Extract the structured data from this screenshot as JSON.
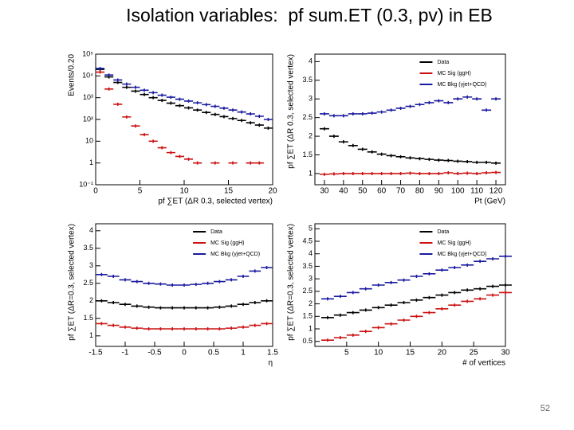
{
  "slide": {
    "title": "Isolation variables:  pf sum.ET (0.3, pv) in EB",
    "page_number": "52"
  },
  "chart_data": [
    {
      "type": "scatter",
      "log_y": true,
      "xlabel": "pf ∑ET (ΔR 0.3, selected vertex)",
      "ylabel": "Events/0.20",
      "x": [
        0.5,
        1.5,
        2.5,
        3.5,
        4.5,
        5.5,
        6.5,
        7.5,
        8.5,
        9.5,
        10.5,
        11.5,
        12.5,
        13.5,
        14.5,
        15.5,
        16.5,
        17.5,
        18.5,
        19.5
      ],
      "xlim": [
        0,
        20
      ],
      "xticks": [
        0,
        5,
        10,
        15,
        20
      ],
      "ylim": [
        0.1,
        100000
      ],
      "yticks": [
        {
          "value": 0.1,
          "label": "10⁻¹"
        },
        1,
        10,
        {
          "value": 100,
          "label": "10²"
        },
        {
          "value": 1000,
          "label": "10³"
        },
        {
          "value": 10000,
          "label": "10⁴"
        },
        {
          "value": 100000,
          "label": "10⁵"
        }
      ],
      "series": [
        {
          "color": "#000000",
          "values": [
            20000,
            9000,
            5000,
            3000,
            2000,
            1400,
            1000,
            750,
            560,
            430,
            340,
            270,
            210,
            170,
            135,
            110,
            90,
            70,
            55,
            40
          ]
        },
        {
          "color": "#1a1aa0",
          "values": [
            22000,
            11000,
            6500,
            4200,
            3000,
            2200,
            1700,
            1300,
            1050,
            850,
            700,
            580,
            480,
            400,
            330,
            270,
            220,
            180,
            140,
            100
          ]
        },
        {
          "color": "#cc1111",
          "values": [
            15000,
            2500,
            500,
            130,
            50,
            20,
            10,
            5,
            3,
            2,
            1.5,
            1,
            null,
            1,
            null,
            1,
            null,
            1,
            1,
            null
          ]
        }
      ]
    },
    {
      "type": "scatter",
      "xlabel": "Pt (GeV)",
      "ylabel": "pf ∑ET (ΔR 0.3, selected vertex)",
      "x": [
        30,
        35,
        40,
        45,
        50,
        55,
        60,
        65,
        70,
        75,
        80,
        85,
        90,
        95,
        100,
        105,
        110,
        115,
        120
      ],
      "xlim": [
        25,
        125
      ],
      "xticks": [
        30,
        40,
        50,
        60,
        70,
        80,
        90,
        100,
        110,
        120
      ],
      "ylim": [
        0.7,
        4.2
      ],
      "yticks": [
        1,
        1.5,
        2,
        2.5,
        3,
        3.5,
        4
      ],
      "series": [
        {
          "name": "Data",
          "color": "#000000",
          "values": [
            2.2,
            2.0,
            1.85,
            1.75,
            1.65,
            1.58,
            1.52,
            1.48,
            1.45,
            1.42,
            1.4,
            1.38,
            1.36,
            1.35,
            1.33,
            1.32,
            1.3,
            1.3,
            1.28
          ]
        },
        {
          "name": "MC Sig (ggH)",
          "color": "#cc1111",
          "values": [
            0.98,
            0.99,
            1,
            1,
            1,
            1,
            1,
            1,
            1,
            1.01,
            1,
            1,
            1,
            1.02,
            1,
            1.01,
            1,
            1.02,
            1.03
          ]
        },
        {
          "name": "MC Bkg (γjet+QCD)",
          "color": "#1a1aa0",
          "values": [
            2.6,
            2.55,
            2.55,
            2.6,
            2.6,
            2.62,
            2.65,
            2.7,
            2.75,
            2.8,
            2.85,
            2.9,
            2.95,
            2.9,
            3.0,
            3.05,
            3.0,
            2.7,
            3.0
          ]
        }
      ]
    },
    {
      "type": "scatter",
      "xlabel": "η",
      "ylabel": "pf ∑ET (ΔR=0.3, selected vertex)",
      "x": [
        -1.4,
        -1.2,
        -1,
        -0.8,
        -0.6,
        -0.4,
        -0.2,
        0,
        0.2,
        0.4,
        0.6,
        0.8,
        1,
        1.2,
        1.4
      ],
      "xlim": [
        -1.5,
        1.5
      ],
      "xticks": [
        -1.5,
        -1,
        -0.5,
        0,
        0.5,
        1,
        1.5
      ],
      "ylim": [
        0.7,
        4.2
      ],
      "yticks": [
        1,
        1.5,
        2,
        2.5,
        3,
        3.5,
        4
      ],
      "series": [
        {
          "name": "Data",
          "color": "#000000",
          "values": [
            2.0,
            1.95,
            1.9,
            1.85,
            1.82,
            1.8,
            1.8,
            1.8,
            1.8,
            1.8,
            1.82,
            1.85,
            1.9,
            1.95,
            2.0
          ]
        },
        {
          "name": "MC Sig (ggH)",
          "color": "#cc1111",
          "values": [
            1.35,
            1.3,
            1.25,
            1.22,
            1.2,
            1.2,
            1.2,
            1.2,
            1.2,
            1.2,
            1.2,
            1.22,
            1.25,
            1.3,
            1.35
          ]
        },
        {
          "name": "MC Bkg (γjet+QCD)",
          "color": "#1a1aa0",
          "values": [
            2.75,
            2.7,
            2.6,
            2.55,
            2.5,
            2.48,
            2.45,
            2.45,
            2.47,
            2.5,
            2.55,
            2.6,
            2.7,
            2.85,
            2.95
          ]
        }
      ]
    },
    {
      "type": "scatter",
      "xlabel": "# of vertices",
      "ylabel": "pf ∑ET (ΔR=0.3, selected vertex)",
      "x": [
        2,
        4,
        6,
        8,
        10,
        12,
        14,
        16,
        18,
        20,
        22,
        24,
        26,
        28,
        30
      ],
      "xlim": [
        0,
        30
      ],
      "xticks": [
        5,
        10,
        15,
        20,
        25,
        30
      ],
      "ylim": [
        0.3,
        5.2
      ],
      "yticks": [
        0.5,
        1,
        1.5,
        2,
        2.5,
        3,
        3.5,
        4,
        4.5,
        5
      ],
      "series": [
        {
          "name": "Data",
          "color": "#000000",
          "values": [
            1.45,
            1.55,
            1.65,
            1.75,
            1.85,
            1.95,
            2.05,
            2.15,
            2.25,
            2.35,
            2.45,
            2.55,
            2.6,
            2.7,
            2.75
          ]
        },
        {
          "name": "MC Sig (ggH)",
          "color": "#cc1111",
          "values": [
            0.55,
            0.65,
            0.75,
            0.9,
            1.05,
            1.2,
            1.35,
            1.5,
            1.65,
            1.8,
            1.95,
            2.1,
            2.2,
            2.35,
            2.45
          ]
        },
        {
          "name": "MC Bkg (γjet+QCD)",
          "color": "#1a1aa0",
          "values": [
            2.2,
            2.3,
            2.45,
            2.6,
            2.75,
            2.85,
            2.95,
            3.1,
            3.2,
            3.35,
            3.45,
            3.55,
            3.7,
            3.8,
            3.9
          ]
        }
      ]
    }
  ]
}
